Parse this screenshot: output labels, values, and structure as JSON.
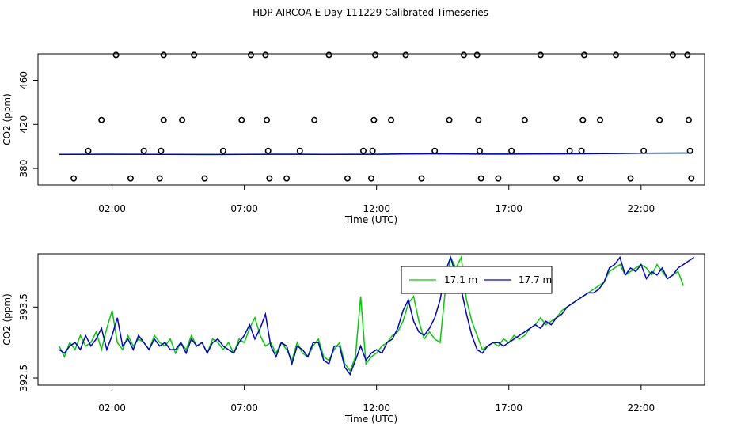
{
  "title": "HDP AIRCOA E  Day 111229  Calibrated Timeseries",
  "chart_data": [
    {
      "type": "scatter",
      "xlabel": "Time (UTC)",
      "ylabel": "CO2 (ppm)",
      "x_unit": "hours UTC",
      "xlim": [
        -0.8,
        24.4
      ],
      "ylim": [
        365,
        484
      ],
      "xticks": [
        2,
        7,
        12,
        17,
        22
      ],
      "xtick_labels": [
        "02:00",
        "07:00",
        "12:00",
        "17:00",
        "22:00"
      ],
      "yticks": [
        380,
        420,
        460
      ],
      "ytick_labels": [
        "380",
        "420",
        "460"
      ],
      "grid": false,
      "points": [
        [
          0.55,
          371
        ],
        [
          1.1,
          396
        ],
        [
          1.6,
          424
        ],
        [
          2.15,
          483
        ],
        [
          2.7,
          371
        ],
        [
          3.2,
          396
        ],
        [
          3.8,
          371
        ],
        [
          3.85,
          396
        ],
        [
          3.95,
          424
        ],
        [
          3.95,
          483
        ],
        [
          4.65,
          424
        ],
        [
          5.1,
          483
        ],
        [
          5.5,
          371
        ],
        [
          6.2,
          396
        ],
        [
          6.9,
          424
        ],
        [
          7.25,
          483
        ],
        [
          7.8,
          483
        ],
        [
          7.85,
          424
        ],
        [
          7.9,
          396
        ],
        [
          7.95,
          371
        ],
        [
          8.6,
          371
        ],
        [
          9.1,
          396
        ],
        [
          9.65,
          424
        ],
        [
          10.2,
          483
        ],
        [
          10.9,
          371
        ],
        [
          11.5,
          396
        ],
        [
          11.8,
          371
        ],
        [
          11.85,
          396
        ],
        [
          11.9,
          424
        ],
        [
          11.95,
          483
        ],
        [
          12.55,
          424
        ],
        [
          13.1,
          483
        ],
        [
          13.7,
          371
        ],
        [
          14.2,
          396
        ],
        [
          14.75,
          424
        ],
        [
          15.3,
          483
        ],
        [
          15.8,
          483
        ],
        [
          15.85,
          424
        ],
        [
          15.9,
          396
        ],
        [
          15.95,
          371
        ],
        [
          16.6,
          371
        ],
        [
          17.1,
          396
        ],
        [
          17.6,
          424
        ],
        [
          18.2,
          483
        ],
        [
          18.8,
          371
        ],
        [
          19.3,
          396
        ],
        [
          19.75,
          396
        ],
        [
          19.8,
          424
        ],
        [
          19.85,
          483
        ],
        [
          19.7,
          371
        ],
        [
          20.45,
          424
        ],
        [
          21.05,
          483
        ],
        [
          21.6,
          371
        ],
        [
          22.1,
          396
        ],
        [
          22.7,
          424
        ],
        [
          23.2,
          483
        ],
        [
          23.75,
          483
        ],
        [
          23.8,
          424
        ],
        [
          23.85,
          396
        ],
        [
          23.9,
          371
        ]
      ],
      "series": [
        {
          "name": "17.1 m",
          "color": "#00cc00",
          "x": [
            0,
            2,
            4,
            6,
            8,
            10,
            12,
            14,
            16,
            18,
            20,
            22,
            23.9
          ],
          "values": [
            392.8,
            392.9,
            392.8,
            392.7,
            392.9,
            392.8,
            392.9,
            393.3,
            393.0,
            393.1,
            393.4,
            393.9,
            394.0
          ]
        },
        {
          "name": "17.7 m",
          "color": "#0000cc",
          "x": [
            0,
            2,
            4,
            6,
            8,
            10,
            12,
            14,
            16,
            18,
            20,
            22,
            23.9
          ],
          "values": [
            392.8,
            392.9,
            392.8,
            392.7,
            392.9,
            392.8,
            392.9,
            393.3,
            393.0,
            393.1,
            393.4,
            393.9,
            394.0
          ]
        }
      ]
    },
    {
      "type": "line",
      "xlabel": "Time (UTC)",
      "ylabel": "CO2 (ppm)",
      "x_unit": "hours UTC",
      "xlim": [
        -0.8,
        24.4
      ],
      "ylim": [
        392.4,
        394.25
      ],
      "xticks": [
        2,
        7,
        12,
        17,
        22
      ],
      "xtick_labels": [
        "02:00",
        "07:00",
        "12:00",
        "17:00",
        "22:00"
      ],
      "yticks": [
        392.5,
        393.5
      ],
      "ytick_labels": [
        "392.5",
        "393.5"
      ],
      "grid": false,
      "legend": "top-center",
      "series": [
        {
          "name": "17.1 m",
          "color": "#00cc00",
          "x": [
            0,
            0.2,
            0.4,
            0.6,
            0.8,
            1.0,
            1.2,
            1.4,
            1.6,
            1.8,
            2.0,
            2.2,
            2.4,
            2.6,
            2.8,
            3.0,
            3.2,
            3.4,
            3.6,
            3.8,
            4.0,
            4.2,
            4.4,
            4.6,
            4.8,
            5.0,
            5.2,
            5.4,
            5.6,
            5.8,
            6.0,
            6.2,
            6.4,
            6.6,
            6.8,
            7.0,
            7.2,
            7.4,
            7.6,
            7.8,
            8.0,
            8.2,
            8.4,
            8.6,
            8.8,
            9.0,
            9.2,
            9.4,
            9.6,
            9.8,
            10.0,
            10.2,
            10.4,
            10.6,
            10.8,
            11.0,
            11.2,
            11.4,
            11.6,
            11.8,
            12.0,
            12.2,
            12.4,
            12.6,
            12.8,
            13.0,
            13.2,
            13.4,
            13.6,
            13.8,
            14.0,
            14.2,
            14.4,
            14.6,
            14.8,
            15.0,
            15.2,
            15.4,
            15.6,
            15.8,
            16.0,
            16.2,
            16.4,
            16.6,
            16.8,
            17.0,
            17.2,
            17.4,
            17.6,
            17.8,
            18.0,
            18.2,
            18.4,
            18.6,
            18.8,
            19.0,
            19.2,
            19.4,
            19.6,
            19.8,
            20.0,
            20.2,
            20.4,
            20.6,
            20.8,
            21.0,
            21.2,
            21.4,
            21.6,
            21.8,
            22.0,
            22.2,
            22.4,
            22.6,
            22.8,
            23.0,
            23.2,
            23.4,
            23.6
          ],
          "values": [
            392.95,
            392.8,
            393.0,
            392.9,
            393.1,
            392.95,
            393.0,
            393.15,
            392.9,
            393.2,
            393.45,
            393.0,
            392.9,
            393.1,
            392.95,
            393.05,
            393.0,
            392.9,
            393.1,
            393.0,
            392.95,
            393.05,
            392.85,
            393.0,
            392.9,
            393.1,
            392.95,
            393.0,
            392.85,
            393.05,
            393.0,
            392.9,
            393.0,
            392.85,
            393.05,
            393.0,
            393.2,
            393.35,
            393.1,
            392.95,
            393.0,
            392.85,
            393.0,
            392.9,
            392.75,
            393.0,
            392.85,
            392.8,
            392.95,
            393.05,
            392.8,
            392.75,
            392.9,
            393.0,
            392.7,
            392.6,
            392.8,
            393.65,
            392.7,
            392.8,
            392.85,
            392.95,
            393.0,
            393.1,
            393.15,
            393.3,
            393.55,
            393.65,
            393.3,
            393.05,
            393.15,
            393.05,
            393.0,
            393.75,
            394.2,
            394.05,
            394.2,
            393.6,
            393.3,
            393.1,
            392.9,
            392.95,
            393.0,
            392.95,
            393.05,
            393.0,
            393.1,
            393.05,
            393.1,
            393.2,
            393.25,
            393.35,
            393.25,
            393.3,
            393.35,
            393.45,
            393.5,
            393.55,
            393.6,
            393.65,
            393.7,
            393.75,
            393.8,
            393.85,
            394.0,
            394.05,
            394.1,
            393.95,
            394.0,
            394.05,
            394.1,
            394.05,
            393.95,
            394.1,
            394.0,
            393.9,
            393.95,
            394.0,
            393.8
          ]
        },
        {
          "name": "17.7 m",
          "color": "#0000cc",
          "x": [
            0,
            0.2,
            0.4,
            0.6,
            0.8,
            1.0,
            1.2,
            1.4,
            1.6,
            1.8,
            2.0,
            2.2,
            2.4,
            2.6,
            2.8,
            3.0,
            3.2,
            3.4,
            3.6,
            3.8,
            4.0,
            4.2,
            4.4,
            4.6,
            4.8,
            5.0,
            5.2,
            5.4,
            5.6,
            5.8,
            6.0,
            6.2,
            6.4,
            6.6,
            6.8,
            7.0,
            7.2,
            7.4,
            7.6,
            7.8,
            8.0,
            8.2,
            8.4,
            8.6,
            8.8,
            9.0,
            9.2,
            9.4,
            9.6,
            9.8,
            10.0,
            10.2,
            10.4,
            10.6,
            10.8,
            11.0,
            11.2,
            11.4,
            11.6,
            11.8,
            12.0,
            12.2,
            12.4,
            12.6,
            12.8,
            13.0,
            13.2,
            13.4,
            13.6,
            13.8,
            14.0,
            14.2,
            14.4,
            14.6,
            14.8,
            15.0,
            15.2,
            15.4,
            15.6,
            15.8,
            16.0,
            16.2,
            16.4,
            16.6,
            16.8,
            17.0,
            17.2,
            17.4,
            17.6,
            17.8,
            18.0,
            18.2,
            18.4,
            18.6,
            18.8,
            19.0,
            19.2,
            19.4,
            19.6,
            19.8,
            20.0,
            20.2,
            20.4,
            20.6,
            20.8,
            21.0,
            21.2,
            21.4,
            21.6,
            21.8,
            22.0,
            22.2,
            22.4,
            22.6,
            22.8,
            23.0,
            23.2,
            23.4,
            23.6,
            23.8,
            24.0
          ],
          "values": [
            392.9,
            392.85,
            392.95,
            393.0,
            392.9,
            393.1,
            392.95,
            393.05,
            393.2,
            392.9,
            393.1,
            393.35,
            392.95,
            393.05,
            392.9,
            393.1,
            393.0,
            392.9,
            393.05,
            392.95,
            393.0,
            392.9,
            392.9,
            393.0,
            392.85,
            393.05,
            392.95,
            393.0,
            392.85,
            393.0,
            393.05,
            392.95,
            392.9,
            392.85,
            393.0,
            393.1,
            393.25,
            393.05,
            393.2,
            393.4,
            392.95,
            392.8,
            393.0,
            392.95,
            392.7,
            392.95,
            392.9,
            392.8,
            393.0,
            393.0,
            392.75,
            392.7,
            392.95,
            392.95,
            392.65,
            392.55,
            392.75,
            392.95,
            392.75,
            392.85,
            392.9,
            392.85,
            393.0,
            393.05,
            393.2,
            393.45,
            393.6,
            393.3,
            393.15,
            393.1,
            393.2,
            393.35,
            393.6,
            394.0,
            394.2,
            393.95,
            393.75,
            393.4,
            393.1,
            392.9,
            392.85,
            392.95,
            393.0,
            393.0,
            392.95,
            393.0,
            393.05,
            393.1,
            393.15,
            393.2,
            393.25,
            393.2,
            393.3,
            393.25,
            393.35,
            393.4,
            393.5,
            393.55,
            393.6,
            393.65,
            393.7,
            393.7,
            393.75,
            393.85,
            394.05,
            394.1,
            394.2,
            393.95,
            394.05,
            394.0,
            394.1,
            393.9,
            394.0,
            393.95,
            394.05,
            393.9,
            393.95,
            394.05,
            394.1,
            394.15,
            394.2
          ]
        }
      ]
    }
  ]
}
